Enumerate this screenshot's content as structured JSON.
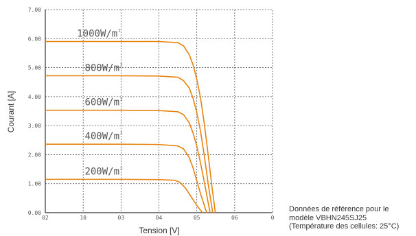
{
  "chart_data": {
    "type": "line",
    "xlabel": "Tension [V]",
    "ylabel": "Courant [A]",
    "xlim": [
      0,
      60
    ],
    "ylim": [
      0,
      7
    ],
    "grid": true,
    "x_tick_labels": [
      "02",
      "10",
      "03",
      "04",
      "05",
      "06",
      "0"
    ],
    "y_tick_labels": [
      "0.00",
      "1.00",
      "2.00",
      "3.00",
      "4.00",
      "5.00",
      "6.00",
      "7.00"
    ],
    "series": [
      {
        "name": "1000W/m²",
        "label_main": "1000W/m",
        "label_sup": "2",
        "x": [
          0,
          10,
          20,
          30,
          35,
          36.5,
          38,
          39,
          40,
          41,
          42,
          43,
          44,
          44.9
        ],
        "y": [
          5.9,
          5.9,
          5.9,
          5.9,
          5.86,
          5.75,
          5.45,
          5.1,
          4.6,
          3.95,
          3.05,
          2.0,
          0.9,
          0
        ]
      },
      {
        "name": "800W/m²",
        "label_main": "800W/m",
        "label_sup": "2",
        "x": [
          0,
          10,
          20,
          30,
          35,
          36.5,
          38,
          39,
          40,
          41,
          42,
          43,
          44.2
        ],
        "y": [
          4.72,
          4.72,
          4.72,
          4.71,
          4.67,
          4.55,
          4.3,
          3.95,
          3.45,
          2.8,
          1.95,
          1.0,
          0
        ]
      },
      {
        "name": "600W/m²",
        "label_main": "600W/m",
        "label_sup": "2",
        "x": [
          0,
          10,
          20,
          30,
          35,
          36.5,
          38,
          39,
          40,
          41,
          42,
          43.5
        ],
        "y": [
          3.53,
          3.53,
          3.53,
          3.52,
          3.48,
          3.38,
          3.1,
          2.75,
          2.3,
          1.7,
          1.05,
          0
        ]
      },
      {
        "name": "400W/m²",
        "label_main": "400W/m",
        "label_sup": "2",
        "x": [
          0,
          10,
          20,
          30,
          35,
          36.5,
          38,
          39,
          40,
          41,
          42.6
        ],
        "y": [
          2.36,
          2.36,
          2.36,
          2.35,
          2.3,
          2.2,
          1.9,
          1.55,
          1.1,
          0.65,
          0
        ]
      },
      {
        "name": "200W/m²",
        "label_main": "200W/m",
        "label_sup": "2",
        "x": [
          0,
          10,
          20,
          30,
          34,
          35.5,
          37,
          38.5,
          40,
          41.5
        ],
        "y": [
          1.15,
          1.15,
          1.15,
          1.14,
          1.12,
          1.05,
          0.85,
          0.55,
          0.25,
          0
        ]
      }
    ]
  },
  "note": {
    "line1": "Données de référence pour le",
    "line2": "modèle VBHN245SJ25",
    "line3": "(Température des cellules: 25°C)"
  },
  "colors": {
    "curve": "#e8820e",
    "grid": "#555555",
    "text": "#555555"
  }
}
